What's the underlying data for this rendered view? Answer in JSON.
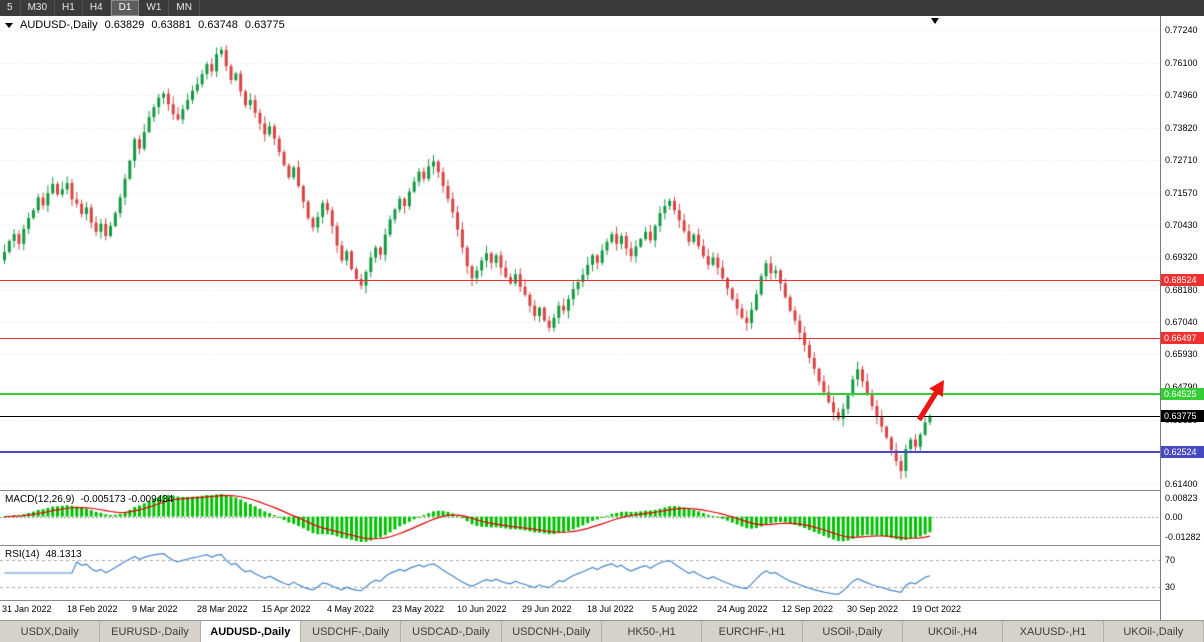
{
  "toolbar": {
    "timeframes": [
      "5",
      "M30",
      "H1",
      "H4",
      "D1",
      "W1",
      "MN"
    ],
    "active": "D1"
  },
  "chart": {
    "title": "AUDUSD-,Daily",
    "ohlc": {
      "open": "0.63829",
      "high": "0.63881",
      "low": "0.63748",
      "close": "0.63775"
    },
    "price_axis": [
      "0.77240",
      "0.76100",
      "0.74960",
      "0.73820",
      "0.72710",
      "0.71570",
      "0.70430",
      "0.69320",
      "0.68180",
      "0.67040",
      "0.65930",
      "0.64790",
      "0.63650",
      "0.62540",
      "0.61400"
    ],
    "hlines": [
      {
        "price": 0.68524,
        "label": "0.68524",
        "color": "#f02f2f",
        "width": 1
      },
      {
        "price": 0.66497,
        "label": "0.66497",
        "color": "#f02f2f",
        "width": 1
      },
      {
        "price": 0.64525,
        "label": "0.64525",
        "color": "#35cd35",
        "width": 2
      },
      {
        "price": 0.63775,
        "label": "0.63775",
        "color": "#000000",
        "width": 1
      },
      {
        "price": 0.62524,
        "label": "0.62524",
        "color": "#4a4ac0",
        "width": 2
      }
    ],
    "dates": [
      "31 Jan 2022",
      "18 Feb 2022",
      "9 Mar 2022",
      "28 Mar 2022",
      "15 Apr 2022",
      "4 May 2022",
      "23 May 2022",
      "10 Jun 2022",
      "29 Jun 2022",
      "18 Jul 2022",
      "5 Aug 2022",
      "24 Aug 2022",
      "12 Sep 2022",
      "30 Sep 2022",
      "19 Oct 2022"
    ]
  },
  "macd": {
    "label": "MACD(12,26,9)",
    "values_text": "-0.005173 -0.009434",
    "axis_top": "0.00823",
    "axis_zero": "0.00",
    "axis_bottom": "-0.01282"
  },
  "rsi": {
    "label": "RSI(14)",
    "value_text": "48.1313",
    "level_top": "70",
    "level_bottom": "30"
  },
  "tabs": {
    "items": [
      "USDX,Daily",
      "EURUSD-,Daily",
      "AUDUSD-,Daily",
      "USDCHF-,Daily",
      "USDCAD-,Daily",
      "USDCNH-,Daily",
      "HK50-,H1",
      "EURCHF-,H1",
      "USOil-,Daily",
      "UKOil-,H4",
      "XAUUSD-,H1",
      "UKOil-,Daily"
    ],
    "active": "AUDUSD-,Daily"
  },
  "colors": {
    "candle_up": "#159a43",
    "candle_down": "#d84545",
    "macd_histogram": "#00c000",
    "macd_signal": "#e00000",
    "rsi_line": "#4a86c8",
    "grid": "#e3e3e3",
    "toolbar_bg": "#3b3b3b",
    "arrow": "#f01414"
  },
  "chart_data": {
    "type": "candlestick",
    "symbol": "AUDUSD-",
    "timeframe": "Daily",
    "title": "AUDUSD-,Daily",
    "current_bar": {
      "open": 0.63829,
      "high": 0.63881,
      "low": 0.63748,
      "close": 0.63775
    },
    "ylim": [
      0.6119,
      0.7773
    ],
    "y_ticks": [
      0.7724,
      0.761,
      0.7496,
      0.7382,
      0.7271,
      0.7157,
      0.7043,
      0.6932,
      0.6818,
      0.6704,
      0.6593,
      0.6479,
      0.6365,
      0.6254,
      0.614
    ],
    "x_tick_labels": [
      "31 Jan 2022",
      "18 Feb 2022",
      "9 Mar 2022",
      "28 Mar 2022",
      "15 Apr 2022",
      "4 May 2022",
      "23 May 2022",
      "10 Jun 2022",
      "29 Jun 2022",
      "18 Jul 2022",
      "5 Aug 2022",
      "24 Aug 2022",
      "12 Sep 2022",
      "30 Sep 2022",
      "19 Oct 2022"
    ],
    "horizontal_levels": [
      0.68524,
      0.66497,
      0.64525,
      0.63775,
      0.62524
    ],
    "closes": [
      0.695,
      0.6988,
      0.7012,
      0.6978,
      0.703,
      0.7068,
      0.7095,
      0.714,
      0.7112,
      0.7155,
      0.7187,
      0.715,
      0.7168,
      0.719,
      0.7133,
      0.7118,
      0.7082,
      0.7105,
      0.7052,
      0.702,
      0.7048,
      0.7005,
      0.704,
      0.7085,
      0.714,
      0.7205,
      0.7268,
      0.7343,
      0.731,
      0.7368,
      0.742,
      0.7455,
      0.7488,
      0.7502,
      0.7465,
      0.743,
      0.7412,
      0.7448,
      0.748,
      0.7512,
      0.7535,
      0.757,
      0.7605,
      0.758,
      0.764,
      0.7655,
      0.7598,
      0.755,
      0.7572,
      0.751,
      0.7462,
      0.748,
      0.7435,
      0.7398,
      0.736,
      0.7388,
      0.7345,
      0.7298,
      0.7252,
      0.721,
      0.7245,
      0.718,
      0.7125,
      0.7068,
      0.7035,
      0.7072,
      0.712,
      0.7095,
      0.704,
      0.6972,
      0.692,
      0.6952,
      0.689,
      0.6855,
      0.6832,
      0.688,
      0.693,
      0.6965,
      0.694,
      0.701,
      0.7063,
      0.7098,
      0.7135,
      0.711,
      0.716,
      0.7195,
      0.723,
      0.7205,
      0.7248,
      0.7265,
      0.7228,
      0.718,
      0.7135,
      0.7088,
      0.7028,
      0.6965,
      0.69,
      0.6858,
      0.6885,
      0.692,
      0.6945,
      0.6912,
      0.6938,
      0.6895,
      0.6862,
      0.684,
      0.6872,
      0.6828,
      0.68,
      0.6762,
      0.6726,
      0.6755,
      0.671,
      0.6685,
      0.672,
      0.6762,
      0.6745,
      0.6785,
      0.682,
      0.6845,
      0.687,
      0.6905,
      0.6938,
      0.6912,
      0.6955,
      0.6985,
      0.7012,
      0.6978,
      0.7005,
      0.6962,
      0.6935,
      0.6968,
      0.6995,
      0.702,
      0.699,
      0.704,
      0.7085,
      0.711,
      0.7128,
      0.7095,
      0.706,
      0.7022,
      0.6985,
      0.701,
      0.697,
      0.6935,
      0.6905,
      0.693,
      0.6895,
      0.6858,
      0.6822,
      0.6785,
      0.6752,
      0.672,
      0.6702,
      0.6748,
      0.6802,
      0.6865,
      0.691,
      0.6875,
      0.6885,
      0.684,
      0.6792,
      0.6745,
      0.671,
      0.6668,
      0.6625,
      0.658,
      0.6542,
      0.6498,
      0.646,
      0.6425,
      0.639,
      0.6368,
      0.6402,
      0.645,
      0.6505,
      0.654,
      0.6498,
      0.6455,
      0.6412,
      0.6375,
      0.634,
      0.6302,
      0.6258,
      0.622,
      0.6185,
      0.6262,
      0.6295,
      0.627,
      0.6312,
      0.6355,
      0.63775
    ],
    "indicators": [
      {
        "name": "MACD",
        "params": "12,26,9",
        "values": [
          -0.005173,
          -0.009434
        ],
        "range": [
          -0.01282,
          0.00823
        ]
      },
      {
        "name": "RSI",
        "params": "14",
        "value": 48.1313,
        "levels": [
          30,
          70
        ]
      }
    ]
  }
}
